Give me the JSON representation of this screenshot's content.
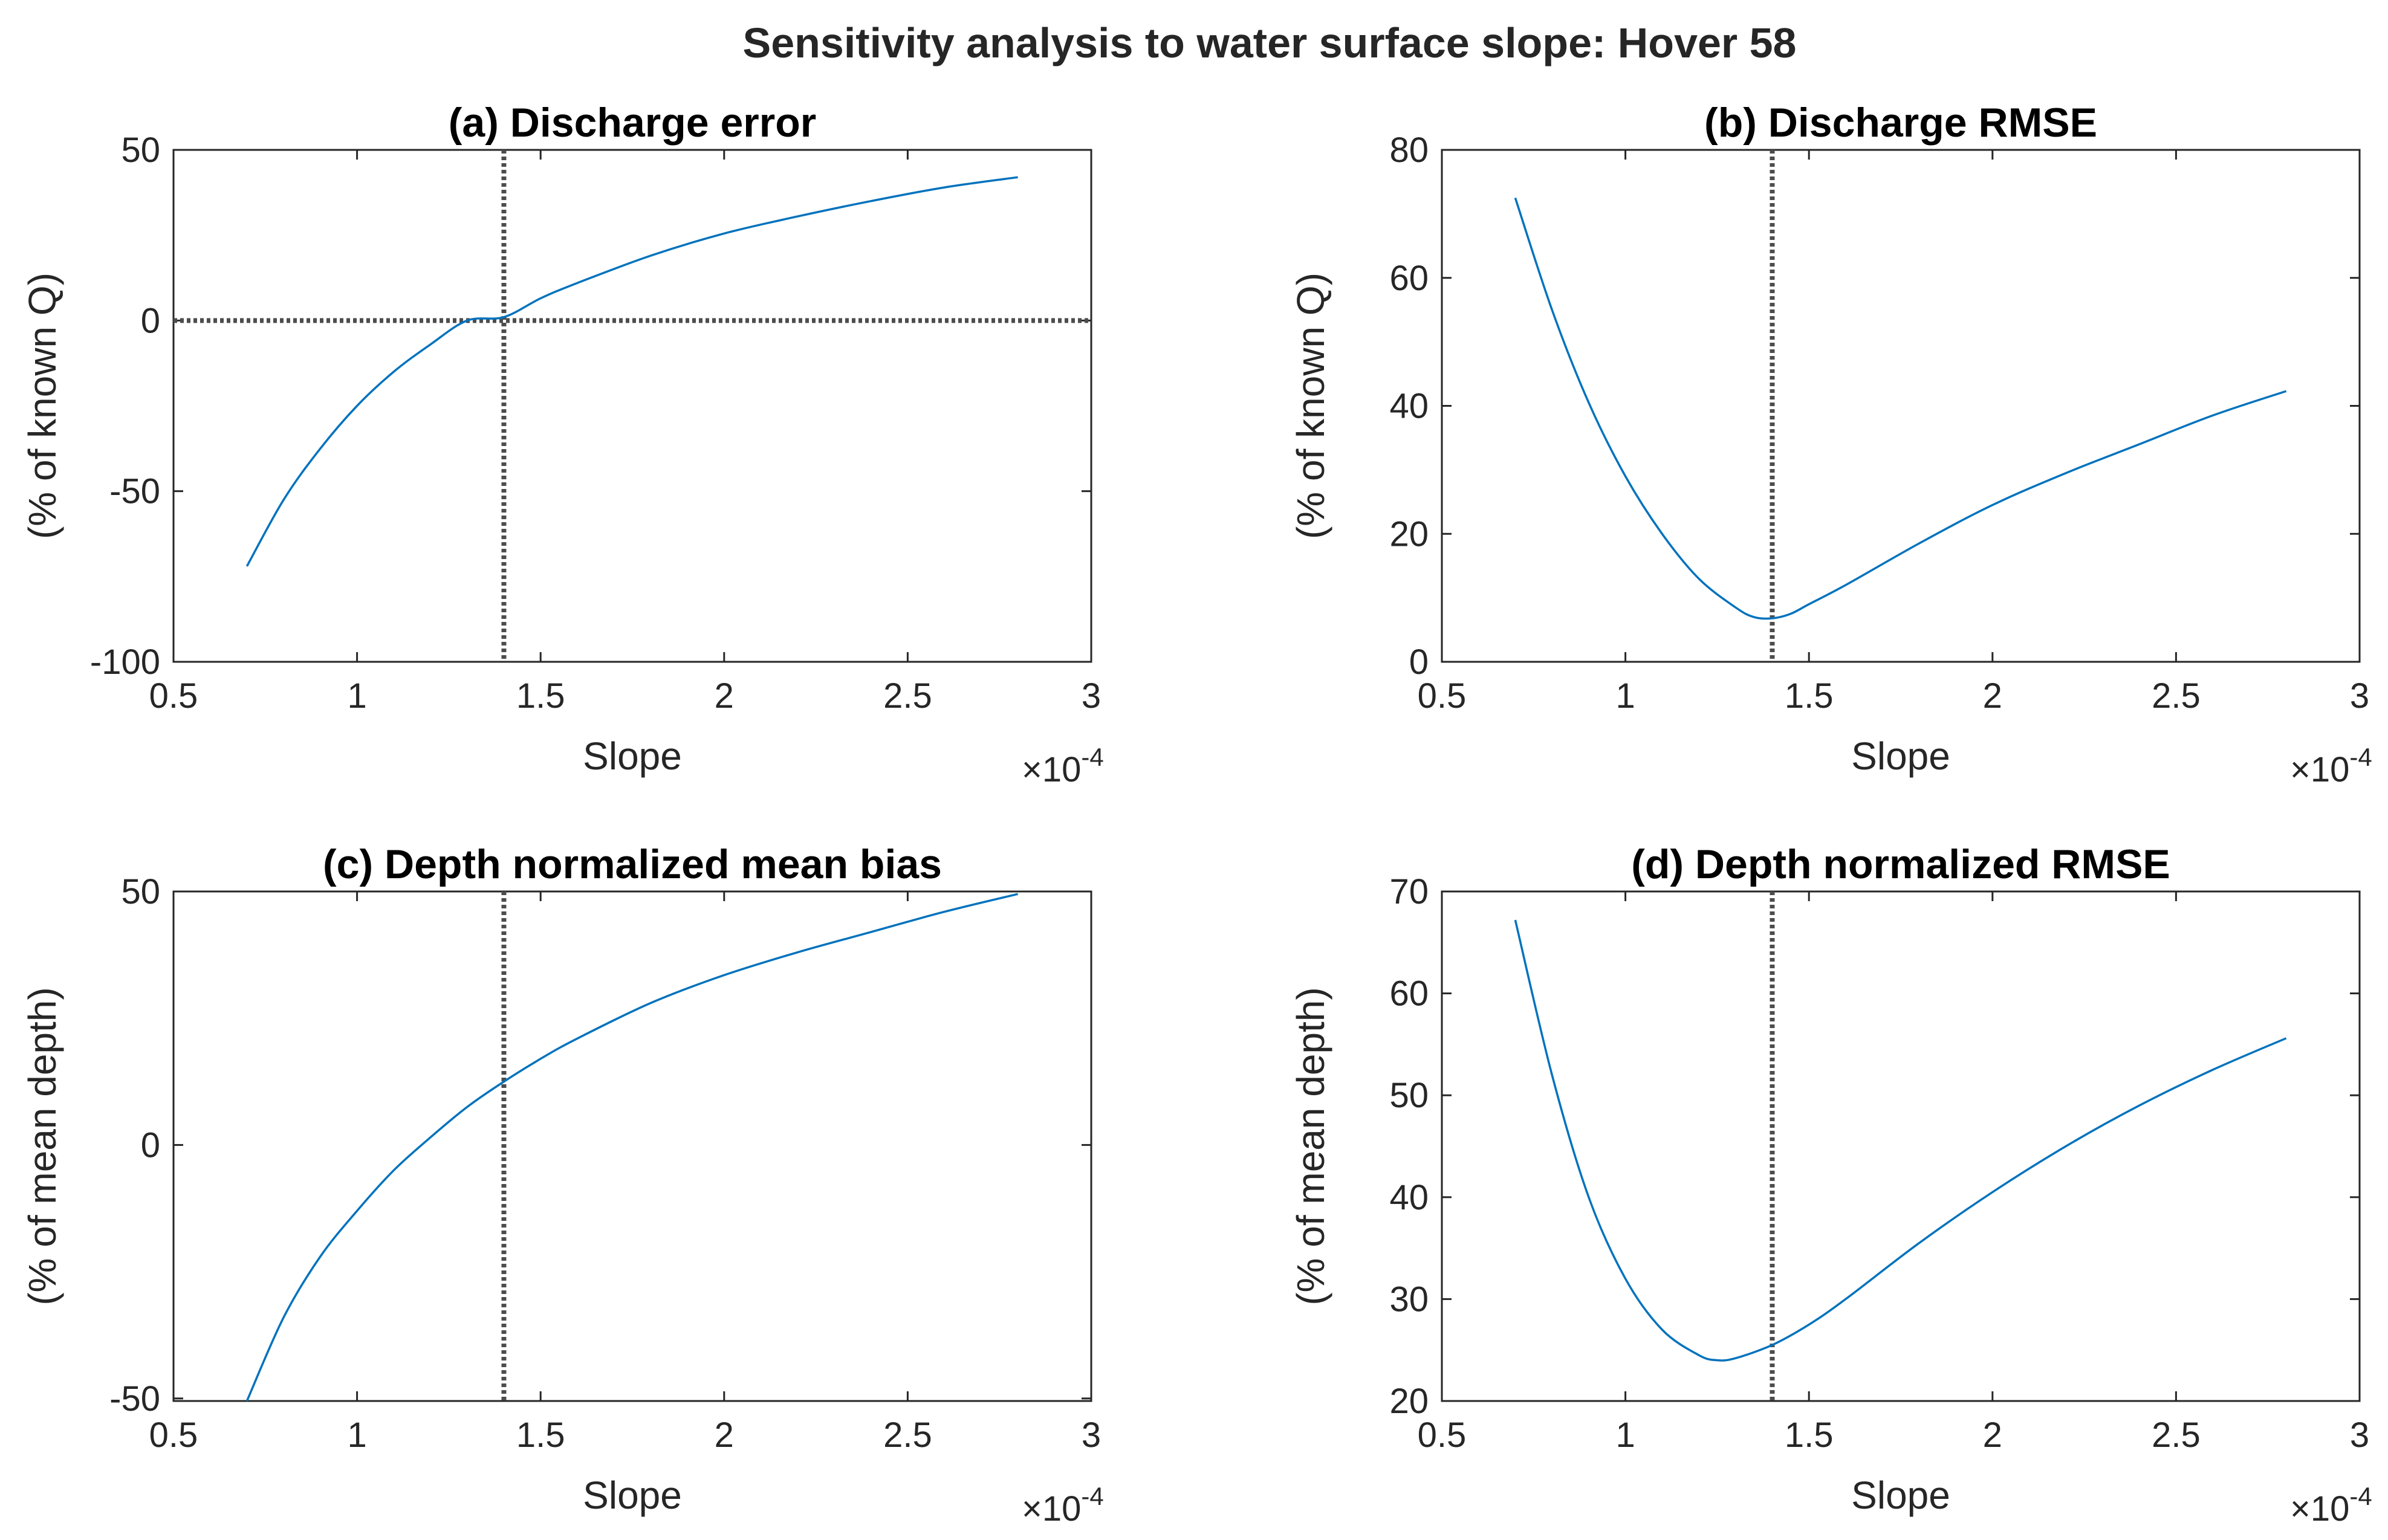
{
  "figure": {
    "title": "Sensitivity analysis to water surface slope: Hover 58",
    "exponent_base": "×10",
    "exponent_power": "-4"
  },
  "chart_data": [
    {
      "id": "a",
      "type": "line",
      "title": "(a) Discharge error",
      "xlabel": "Slope",
      "ylabel": "(% of known Q)",
      "xlim": [
        0.5,
        3
      ],
      "ylim": [
        -100,
        50
      ],
      "xticks": [
        0.5,
        1,
        1.5,
        2,
        2.5,
        3
      ],
      "xtick_labels": [
        "0.5",
        "1",
        "1.5",
        "2",
        "2.5",
        "3"
      ],
      "yticks": [
        -100,
        -50,
        0,
        50
      ],
      "ytick_labels": [
        "-100",
        "-50",
        "0",
        "50"
      ],
      "x_scale_note": "×10^-4",
      "reference_lines": {
        "vertical_x": 1.4,
        "horizontal_y": 0
      },
      "series": [
        {
          "name": "Discharge error",
          "color": "#0072BD",
          "x": [
            0.7,
            0.8,
            0.9,
            1.0,
            1.1,
            1.2,
            1.3,
            1.4,
            1.5,
            1.6,
            1.8,
            2.0,
            2.2,
            2.4,
            2.6,
            2.8
          ],
          "y": [
            -72,
            -52.5,
            -37.5,
            -25,
            -15,
            -7,
            0,
            1,
            6.5,
            11,
            19,
            25.5,
            30.5,
            35,
            39,
            42
          ]
        }
      ]
    },
    {
      "id": "b",
      "type": "line",
      "title": "(b) Discharge RMSE",
      "xlabel": "Slope",
      "ylabel": "(% of known Q)",
      "xlim": [
        0.5,
        3
      ],
      "ylim": [
        0,
        80
      ],
      "xticks": [
        0.5,
        1,
        1.5,
        2,
        2.5,
        3
      ],
      "xtick_labels": [
        "0.5",
        "1",
        "1.5",
        "2",
        "2.5",
        "3"
      ],
      "yticks": [
        0,
        20,
        40,
        60,
        80
      ],
      "ytick_labels": [
        "0",
        "20",
        "40",
        "60",
        "80"
      ],
      "x_scale_note": "×10^-4",
      "reference_lines": {
        "vertical_x": 1.4
      },
      "series": [
        {
          "name": "Discharge RMSE",
          "color": "#0072BD",
          "x": [
            0.7,
            0.8,
            0.9,
            1.0,
            1.1,
            1.2,
            1.3,
            1.35,
            1.4,
            1.45,
            1.5,
            1.6,
            1.8,
            2.0,
            2.2,
            2.4,
            2.6,
            2.8
          ],
          "y": [
            72.5,
            55,
            40.5,
            29,
            20,
            13,
            8.5,
            7,
            6.8,
            7.5,
            9,
            12,
            18.5,
            24.5,
            29.5,
            34,
            38.5,
            42.3
          ]
        }
      ]
    },
    {
      "id": "c",
      "type": "line",
      "title": "(c) Depth normalized mean bias",
      "xlabel": "Slope",
      "ylabel": "(% of mean depth)",
      "xlim": [
        0.5,
        3
      ],
      "ylim": [
        -50.5,
        50
      ],
      "xticks": [
        0.5,
        1,
        1.5,
        2,
        2.5,
        3
      ],
      "xtick_labels": [
        "0.5",
        "1",
        "1.5",
        "2",
        "2.5",
        "3"
      ],
      "yticks": [
        -50,
        0,
        50
      ],
      "ytick_labels": [
        "-50",
        "0",
        "50"
      ],
      "x_scale_note": "×10^-4",
      "reference_lines": {
        "vertical_x": 1.4
      },
      "series": [
        {
          "name": "Depth normalized mean bias",
          "color": "#0072BD",
          "x": [
            0.7,
            0.8,
            0.9,
            1.0,
            1.1,
            1.2,
            1.3,
            1.4,
            1.5,
            1.6,
            1.8,
            2.0,
            2.2,
            2.4,
            2.6,
            2.8
          ],
          "y": [
            -50.5,
            -34,
            -22,
            -13,
            -5,
            1.5,
            7.5,
            12.5,
            17,
            21,
            28,
            33.5,
            38,
            42,
            46,
            49.5
          ]
        }
      ]
    },
    {
      "id": "d",
      "type": "line",
      "title": "(d) Depth normalized RMSE",
      "xlabel": "Slope",
      "ylabel": "(% of mean depth)",
      "xlim": [
        0.5,
        3
      ],
      "ylim": [
        20,
        70
      ],
      "xticks": [
        0.5,
        1,
        1.5,
        2,
        2.5,
        3
      ],
      "xtick_labels": [
        "0.5",
        "1",
        "1.5",
        "2",
        "2.5",
        "3"
      ],
      "yticks": [
        20,
        30,
        40,
        50,
        60,
        70
      ],
      "ytick_labels": [
        "20",
        "30",
        "40",
        "50",
        "60",
        "70"
      ],
      "x_scale_note": "×10^-4",
      "reference_lines": {
        "vertical_x": 1.4
      },
      "series": [
        {
          "name": "Depth normalized RMSE",
          "color": "#0072BD",
          "x": [
            0.7,
            0.8,
            0.9,
            1.0,
            1.1,
            1.2,
            1.25,
            1.3,
            1.4,
            1.5,
            1.6,
            1.8,
            2.0,
            2.2,
            2.4,
            2.6,
            2.8
          ],
          "y": [
            67.2,
            52,
            40,
            32,
            27,
            24.5,
            24,
            24.2,
            25.5,
            27.5,
            30,
            35.5,
            40.5,
            45,
            49,
            52.5,
            55.6
          ]
        }
      ]
    }
  ]
}
